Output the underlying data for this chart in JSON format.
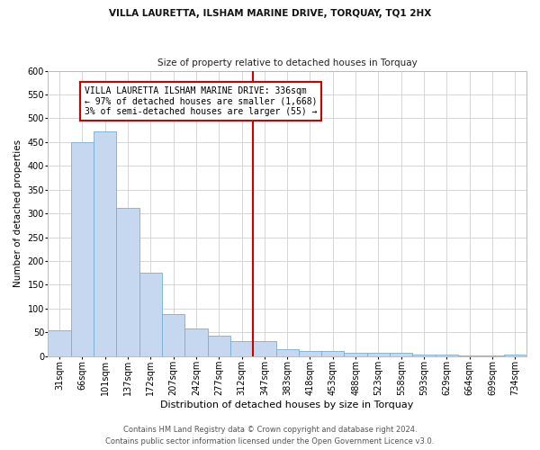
{
  "title1": "VILLA LAURETTA, ILSHAM MARINE DRIVE, TORQUAY, TQ1 2HX",
  "title2": "Size of property relative to detached houses in Torquay",
  "xlabel": "Distribution of detached houses by size in Torquay",
  "ylabel": "Number of detached properties",
  "categories": [
    "31sqm",
    "66sqm",
    "101sqm",
    "137sqm",
    "172sqm",
    "207sqm",
    "242sqm",
    "277sqm",
    "312sqm",
    "347sqm",
    "383sqm",
    "418sqm",
    "453sqm",
    "488sqm",
    "523sqm",
    "558sqm",
    "593sqm",
    "629sqm",
    "664sqm",
    "699sqm",
    "734sqm"
  ],
  "values": [
    55,
    450,
    472,
    311,
    176,
    88,
    58,
    43,
    32,
    32,
    15,
    10,
    10,
    7,
    7,
    8,
    4,
    4,
    1,
    1,
    4
  ],
  "bar_color": "#c5d8f0",
  "bar_edge_color": "#7aadd4",
  "vline_color": "#cc0000",
  "vline_x_index": 9,
  "annotation_text": "VILLA LAURETTA ILSHAM MARINE DRIVE: 336sqm\n← 97% of detached houses are smaller (1,668)\n3% of semi-detached houses are larger (55) →",
  "annotation_box_color": "#cc0000",
  "ylim": [
    0,
    600
  ],
  "yticks": [
    0,
    50,
    100,
    150,
    200,
    250,
    300,
    350,
    400,
    450,
    500,
    550,
    600
  ],
  "footer1": "Contains HM Land Registry data © Crown copyright and database right 2024.",
  "footer2": "Contains public sector information licensed under the Open Government Licence v3.0.",
  "background_color": "#ffffff",
  "grid_color": "#d0d0d0",
  "title1_fontsize": 7.5,
  "title2_fontsize": 7.5,
  "xlabel_fontsize": 8,
  "ylabel_fontsize": 7.5,
  "tick_fontsize": 7,
  "annotation_fontsize": 7,
  "footer_fontsize": 6
}
